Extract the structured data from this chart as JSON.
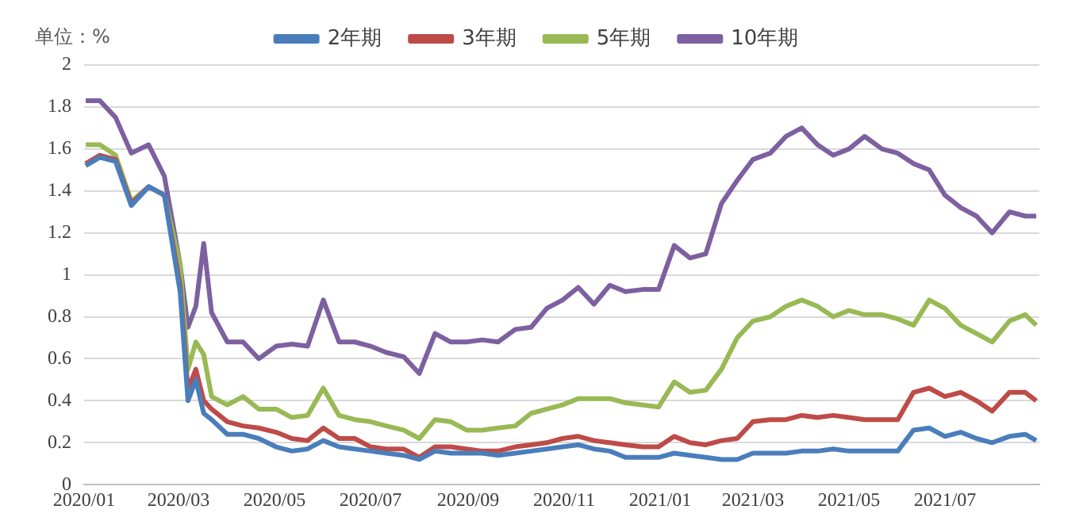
{
  "chart_data": {
    "type": "line",
    "ylabel": "单位：%",
    "x": [
      "2020-01-02",
      "2020-01-11",
      "2020-01-21",
      "2020-01-31",
      "2020-02-11",
      "2020-02-21",
      "2020-03-02",
      "2020-03-07",
      "2020-03-12",
      "2020-03-17",
      "2020-03-22",
      "2020-04-01",
      "2020-04-11",
      "2020-04-21",
      "2020-05-02",
      "2020-05-12",
      "2020-05-22",
      "2020-06-01",
      "2020-06-11",
      "2020-06-21",
      "2020-07-01",
      "2020-07-11",
      "2020-07-22",
      "2020-08-01",
      "2020-08-11",
      "2020-08-21",
      "2020-08-31",
      "2020-09-10",
      "2020-09-20",
      "2020-10-01",
      "2020-10-11",
      "2020-10-21",
      "2020-10-31",
      "2020-11-10",
      "2020-11-20",
      "2020-11-30",
      "2020-12-10",
      "2020-12-21",
      "2020-12-31",
      "2021-01-10",
      "2021-01-20",
      "2021-01-30",
      "2021-02-09",
      "2021-02-19",
      "2021-03-01",
      "2021-03-12",
      "2021-03-22",
      "2021-04-01",
      "2021-04-11",
      "2021-04-21",
      "2021-05-01",
      "2021-05-11",
      "2021-05-22",
      "2021-06-01",
      "2021-06-11",
      "2021-06-21",
      "2021-07-01",
      "2021-07-11",
      "2021-07-21",
      "2021-07-31",
      "2021-08-11",
      "2021-08-21",
      "2021-08-28"
    ],
    "series": [
      {
        "name": "2年期",
        "color": "#4a7ebb",
        "values": [
          1.52,
          1.56,
          1.54,
          1.33,
          1.42,
          1.38,
          0.92,
          0.4,
          0.5,
          0.34,
          0.31,
          0.24,
          0.24,
          0.22,
          0.18,
          0.16,
          0.17,
          0.21,
          0.18,
          0.17,
          0.16,
          0.15,
          0.14,
          0.12,
          0.16,
          0.15,
          0.15,
          0.15,
          0.14,
          0.15,
          0.16,
          0.17,
          0.18,
          0.19,
          0.17,
          0.16,
          0.13,
          0.13,
          0.13,
          0.15,
          0.14,
          0.13,
          0.12,
          0.12,
          0.15,
          0.15,
          0.15,
          0.16,
          0.16,
          0.17,
          0.16,
          0.16,
          0.16,
          0.16,
          0.26,
          0.27,
          0.23,
          0.25,
          0.22,
          0.2,
          0.23,
          0.24,
          0.21
        ]
      },
      {
        "name": "3年期",
        "color": "#be4b48",
        "values": [
          1.53,
          1.57,
          1.55,
          1.34,
          1.42,
          1.38,
          0.95,
          0.45,
          0.55,
          0.4,
          0.36,
          0.3,
          0.28,
          0.27,
          0.25,
          0.22,
          0.21,
          0.27,
          0.22,
          0.22,
          0.18,
          0.17,
          0.17,
          0.13,
          0.18,
          0.18,
          0.17,
          0.16,
          0.16,
          0.18,
          0.19,
          0.2,
          0.22,
          0.23,
          0.21,
          0.2,
          0.19,
          0.18,
          0.18,
          0.23,
          0.2,
          0.19,
          0.21,
          0.22,
          0.3,
          0.31,
          0.31,
          0.33,
          0.32,
          0.33,
          0.32,
          0.31,
          0.31,
          0.31,
          0.44,
          0.46,
          0.42,
          0.44,
          0.4,
          0.35,
          0.44,
          0.44,
          0.4
        ]
      },
      {
        "name": "5年期",
        "color": "#98b954",
        "values": [
          1.62,
          1.62,
          1.57,
          1.35,
          1.42,
          1.38,
          1.05,
          0.55,
          0.68,
          0.62,
          0.42,
          0.38,
          0.42,
          0.36,
          0.36,
          0.32,
          0.33,
          0.46,
          0.33,
          0.31,
          0.3,
          0.28,
          0.26,
          0.22,
          0.31,
          0.3,
          0.26,
          0.26,
          0.27,
          0.28,
          0.34,
          0.36,
          0.38,
          0.41,
          0.41,
          0.41,
          0.39,
          0.38,
          0.37,
          0.49,
          0.44,
          0.45,
          0.55,
          0.7,
          0.78,
          0.8,
          0.85,
          0.88,
          0.85,
          0.8,
          0.83,
          0.81,
          0.81,
          0.79,
          0.76,
          0.88,
          0.84,
          0.76,
          0.72,
          0.68,
          0.78,
          0.81,
          0.76
        ]
      },
      {
        "name": "10年期",
        "color": "#7d60a0",
        "values": [
          1.83,
          1.83,
          1.75,
          1.58,
          1.62,
          1.47,
          1.05,
          0.75,
          0.85,
          1.15,
          0.82,
          0.68,
          0.68,
          0.6,
          0.66,
          0.67,
          0.66,
          0.88,
          0.68,
          0.68,
          0.66,
          0.63,
          0.61,
          0.53,
          0.72,
          0.68,
          0.68,
          0.69,
          0.68,
          0.74,
          0.75,
          0.84,
          0.88,
          0.94,
          0.86,
          0.95,
          0.92,
          0.93,
          0.93,
          1.14,
          1.08,
          1.1,
          1.34,
          1.45,
          1.55,
          1.58,
          1.66,
          1.7,
          1.62,
          1.57,
          1.6,
          1.66,
          1.6,
          1.58,
          1.53,
          1.5,
          1.38,
          1.32,
          1.28,
          1.2,
          1.3,
          1.28,
          1.28
        ]
      }
    ],
    "xlim": [
      "2020-01-01",
      "2021-08-30"
    ],
    "xticks": [
      {
        "value": "2020-01-01",
        "label": "2020/01"
      },
      {
        "value": "2020-03-01",
        "label": "2020/03"
      },
      {
        "value": "2020-05-01",
        "label": "2020/05"
      },
      {
        "value": "2020-07-01",
        "label": "2020/07"
      },
      {
        "value": "2020-09-01",
        "label": "2020/09"
      },
      {
        "value": "2020-11-01",
        "label": "2020/11"
      },
      {
        "value": "2021-01-01",
        "label": "2021/01"
      },
      {
        "value": "2021-03-01",
        "label": "2021/03"
      },
      {
        "value": "2021-05-01",
        "label": "2021/05"
      },
      {
        "value": "2021-07-01",
        "label": "2021/07"
      }
    ],
    "ylim": [
      0,
      2
    ],
    "yticks": [
      0,
      0.2,
      0.4,
      0.6,
      0.8,
      1,
      1.2,
      1.4,
      1.6,
      1.8,
      2
    ],
    "grid": "y",
    "legend": "top",
    "marker": "none",
    "line_style": "solid"
  }
}
